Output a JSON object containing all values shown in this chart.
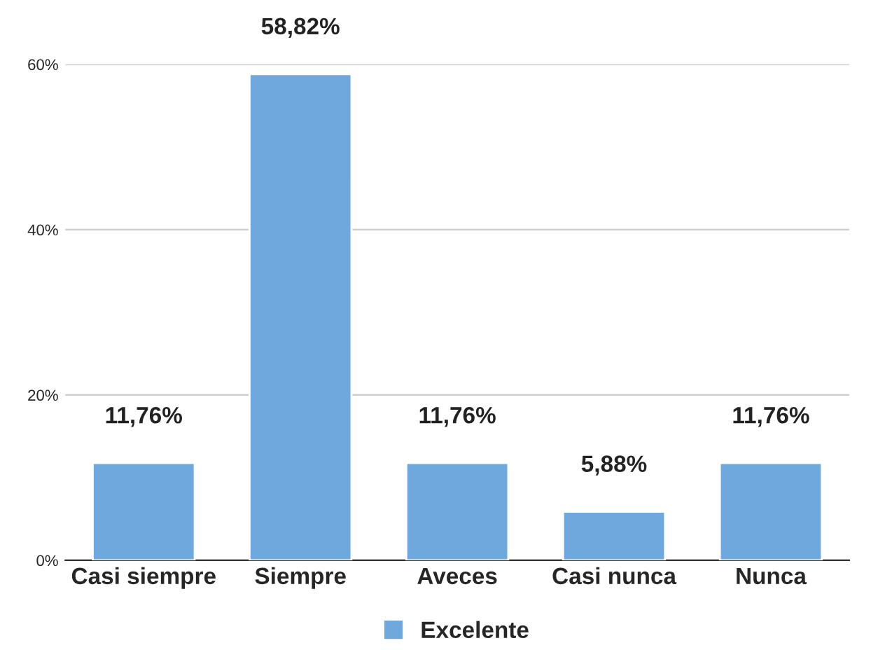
{
  "chart_data": {
    "type": "bar",
    "categories": [
      "Casi siempre",
      "Siempre",
      "Aveces",
      "Casi nunca",
      "Nunca"
    ],
    "series": [
      {
        "name": "Excelente",
        "color": "#6fa8dc",
        "values": [
          11.76,
          58.82,
          11.76,
          5.88,
          11.76
        ],
        "value_labels": [
          "11,76%",
          "58,82%",
          "11,76%",
          "5,88%",
          "11,76%"
        ]
      }
    ],
    "ylim": [
      0,
      60
    ],
    "yticks": [
      {
        "value": 0,
        "label": "0%"
      },
      {
        "value": 20,
        "label": "20%"
      },
      {
        "value": 40,
        "label": "40%"
      },
      {
        "value": 60,
        "label": "60%"
      }
    ],
    "grid": "y",
    "legend": "bottom"
  }
}
